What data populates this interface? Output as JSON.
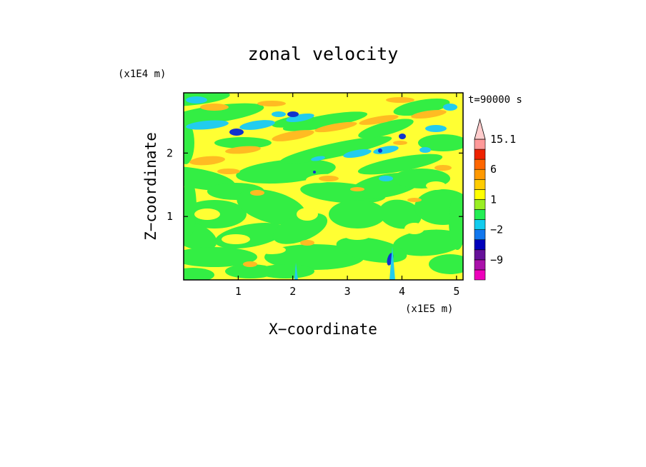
{
  "chart_data": {
    "type": "heatmap",
    "title": "zonal velocity",
    "xlabel": "X−coordinate",
    "ylabel": "Z−coordinate",
    "x_scale_label": "(x1E5 m)",
    "y_scale_label": "(x1E4 m)",
    "time_label": "t=90000 s",
    "x_ticks": [
      {
        "value": 1,
        "label": "1"
      },
      {
        "value": 2,
        "label": "2"
      },
      {
        "value": 3,
        "label": "3"
      },
      {
        "value": 4,
        "label": "4"
      },
      {
        "value": 5,
        "label": "5"
      }
    ],
    "y_ticks": [
      {
        "value": 1,
        "label": "1"
      },
      {
        "value": 2,
        "label": "2"
      }
    ],
    "xlim": [
      0,
      5.12
    ],
    "ylim": [
      0,
      2.95
    ],
    "grid": false,
    "colorbar": {
      "levels": [
        -15,
        -12,
        -9,
        -6,
        -3,
        -2,
        -1,
        0,
        1,
        2,
        3,
        6,
        9,
        12,
        15.1
      ],
      "colors": [
        "#ee00bb",
        "#aa11aa",
        "#661199",
        "#0000bb",
        "#1177ee",
        "#11ccee",
        "#22ee55",
        "#99ee22",
        "#ffff00",
        "#ffcc00",
        "#ff9900",
        "#ff6600",
        "#ee2200",
        "#ff9999",
        "#ffcccc"
      ],
      "tick_labels": [
        {
          "value": 15.1,
          "label": "15.1"
        },
        {
          "value": 6,
          "label": "6"
        },
        {
          "value": 1,
          "label": "1"
        },
        {
          "value": -2,
          "label": "−2"
        },
        {
          "value": -9,
          "label": "−9"
        }
      ]
    },
    "field_description_colors": {
      "bg": "#ffff33",
      "green": "#33ee44",
      "orange": "#ffbb22",
      "cyan": "#22ccee",
      "blue": "#1133cc"
    }
  }
}
